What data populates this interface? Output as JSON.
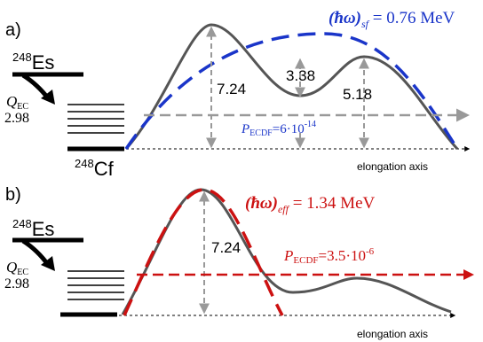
{
  "panels": {
    "a": {
      "label": "a)",
      "parent_nucleus": {
        "mass": "248",
        "symbol": "Es"
      },
      "daughter_nucleus": {
        "mass": "248",
        "symbol": "Cf"
      },
      "q_label": "Q",
      "q_subscript": "EC",
      "q_value": "2.98",
      "barrier_height_1": "7.24",
      "well_depth": "3.38",
      "barrier_height_2": "5.18",
      "hbar_omega_prefix": "(ħω)",
      "hbar_omega_subscript": "sf",
      "hbar_omega_value": " = 0.76 MeV",
      "p_label": "P",
      "p_subscript": "ECDF",
      "p_value_prefix": "=6·10",
      "p_value_exponent": "-14",
      "axis_label": "elongation axis"
    },
    "b": {
      "label": "b)",
      "parent_nucleus": {
        "mass": "248",
        "symbol": "Es"
      },
      "q_label": "Q",
      "q_subscript": "EC",
      "q_value": "2.98",
      "barrier_height": "7.24",
      "hbar_omega_prefix": "(ħω)",
      "hbar_omega_subscript": "eff",
      "hbar_omega_value": " = 1.34 MeV",
      "p_label": "P",
      "p_subscript": "ECDF",
      "p_value_prefix": "=3.5·10",
      "p_value_exponent": "-6",
      "axis_label": "elongation axis"
    }
  },
  "colors": {
    "curve": "#555555",
    "guide": "#999999",
    "panel_a_accent": "#1a35c9",
    "panel_b_accent": "#cc1111",
    "black": "#000000"
  }
}
